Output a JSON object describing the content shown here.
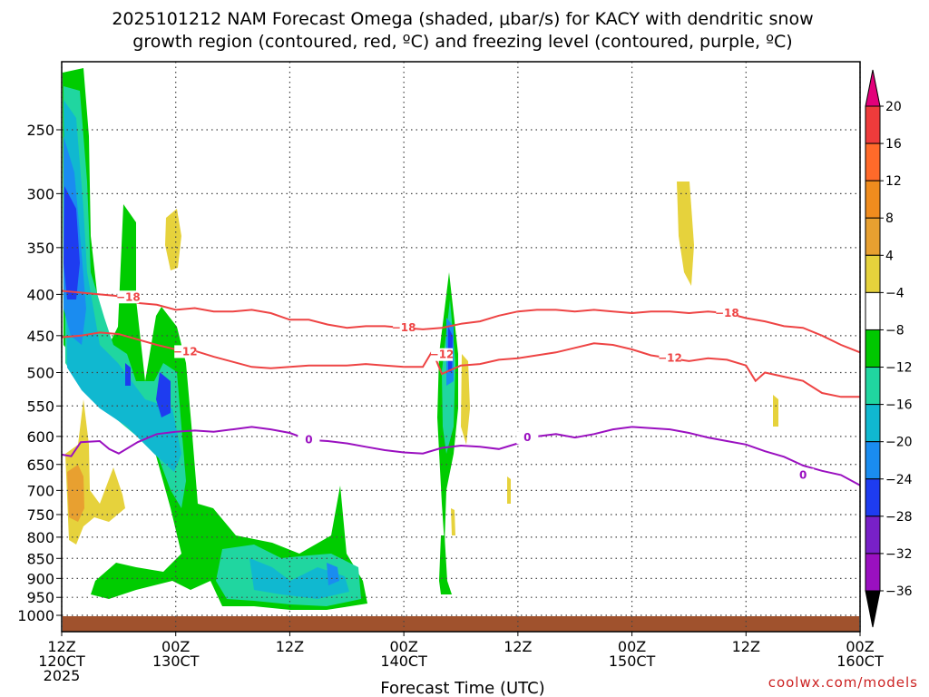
{
  "chart_data": {
    "type": "contour",
    "title_line1": "2025101212 NAM Forecast Omega (shaded, μbar/s) for KACY with dendritic snow",
    "title_line2": "growth region (contoured, red, ºC) and freezing level (contoured, purple, ºC)",
    "xlabel": "Forecast Time (UTC)",
    "credit": "coolwx.com/models",
    "x_ticks": [
      {
        "hour": 0,
        "line1": "12Z",
        "line2": "120CT",
        "line3": "2025"
      },
      {
        "hour": 12,
        "line1": "00Z",
        "line2": "130CT",
        "line3": ""
      },
      {
        "hour": 24,
        "line1": "12Z",
        "line2": "",
        "line3": ""
      },
      {
        "hour": 36,
        "line1": "00Z",
        "line2": "140CT",
        "line3": ""
      },
      {
        "hour": 48,
        "line1": "12Z",
        "line2": "",
        "line3": ""
      },
      {
        "hour": 60,
        "line1": "00Z",
        "line2": "150CT",
        "line3": ""
      },
      {
        "hour": 72,
        "line1": "12Z",
        "line2": "",
        "line3": ""
      },
      {
        "hour": 84,
        "line1": "00Z",
        "line2": "160CT",
        "line3": ""
      }
    ],
    "xlim": [
      0,
      84
    ],
    "y_ticks": [
      250,
      300,
      350,
      400,
      450,
      500,
      550,
      600,
      650,
      700,
      750,
      800,
      850,
      900,
      950,
      1000
    ],
    "ylim": [
      1020,
      200
    ],
    "yscale": "log-pressure",
    "grid": true,
    "colorbar_labels": [
      "20",
      "16",
      "12",
      "8",
      "4",
      "−4",
      "−8",
      "−12",
      "−16",
      "−20",
      "−24",
      "−28",
      "−32",
      "−36"
    ],
    "colorbar_colors": [
      "#e2007a",
      "#ee3b3b",
      "#ff6a2a",
      "#f08c1e",
      "#e8a030",
      "#e6d23c",
      "#ffffff",
      "#00c800",
      "#20d6a0",
      "#10b8d0",
      "#1a8cf0",
      "#1e3cf0",
      "#7820c8",
      "#9a10c0",
      "#a0a0a0",
      "#000000"
    ],
    "contours": [
      {
        "type": "dendritic",
        "label": "−18",
        "color": "#ee4444",
        "points": [
          [
            0,
            396
          ],
          [
            2,
            398
          ],
          [
            4,
            400
          ],
          [
            6,
            402
          ],
          [
            8,
            410
          ],
          [
            10,
            412
          ],
          [
            12,
            418
          ],
          [
            14,
            416
          ],
          [
            16,
            420
          ],
          [
            18,
            420
          ],
          [
            20,
            418
          ],
          [
            22,
            422
          ],
          [
            24,
            430
          ],
          [
            26,
            430
          ],
          [
            28,
            436
          ],
          [
            30,
            440
          ],
          [
            32,
            438
          ],
          [
            34,
            438
          ],
          [
            36,
            440
          ],
          [
            38,
            442
          ],
          [
            40,
            440
          ],
          [
            42,
            435
          ],
          [
            44,
            432
          ],
          [
            46,
            425
          ],
          [
            48,
            420
          ],
          [
            50,
            418
          ],
          [
            52,
            418
          ],
          [
            54,
            420
          ],
          [
            56,
            418
          ],
          [
            58,
            420
          ],
          [
            60,
            422
          ],
          [
            62,
            420
          ],
          [
            64,
            420
          ],
          [
            66,
            422
          ],
          [
            68,
            420
          ],
          [
            70,
            422
          ],
          [
            72,
            428
          ],
          [
            74,
            432
          ],
          [
            76,
            438
          ],
          [
            78,
            440
          ],
          [
            80,
            450
          ],
          [
            82,
            462
          ],
          [
            84,
            472
          ]
        ],
        "label_at": [
          [
            7,
            403
          ],
          [
            36,
            440
          ],
          [
            70,
            422
          ]
        ]
      },
      {
        "type": "dendritic",
        "label": "−12",
        "color": "#ee4444",
        "points": [
          [
            0,
            452
          ],
          [
            2,
            450
          ],
          [
            4,
            446
          ],
          [
            6,
            448
          ],
          [
            8,
            455
          ],
          [
            10,
            462
          ],
          [
            12,
            468
          ],
          [
            14,
            470
          ],
          [
            16,
            478
          ],
          [
            18,
            485
          ],
          [
            20,
            492
          ],
          [
            22,
            494
          ],
          [
            24,
            492
          ],
          [
            26,
            490
          ],
          [
            28,
            490
          ],
          [
            30,
            490
          ],
          [
            32,
            488
          ],
          [
            34,
            490
          ],
          [
            36,
            492
          ],
          [
            38,
            492
          ],
          [
            39,
            470
          ],
          [
            40,
            502
          ],
          [
            42,
            490
          ],
          [
            44,
            488
          ],
          [
            46,
            482
          ],
          [
            48,
            480
          ],
          [
            50,
            476
          ],
          [
            52,
            472
          ],
          [
            54,
            466
          ],
          [
            56,
            460
          ],
          [
            58,
            462
          ],
          [
            60,
            468
          ],
          [
            62,
            476
          ],
          [
            64,
            480
          ],
          [
            66,
            484
          ],
          [
            68,
            480
          ],
          [
            70,
            482
          ],
          [
            72,
            490
          ],
          [
            73,
            512
          ],
          [
            74,
            500
          ],
          [
            76,
            506
          ],
          [
            78,
            512
          ],
          [
            80,
            530
          ],
          [
            82,
            536
          ],
          [
            84,
            536
          ]
        ],
        "label_at": [
          [
            13,
            471
          ],
          [
            40,
            475
          ],
          [
            64,
            480
          ]
        ]
      },
      {
        "type": "freezing",
        "label": "0",
        "color": "#9a10c0",
        "points": [
          [
            0,
            632
          ],
          [
            1,
            635
          ],
          [
            2,
            610
          ],
          [
            4,
            608
          ],
          [
            5,
            622
          ],
          [
            6,
            630
          ],
          [
            8,
            610
          ],
          [
            10,
            596
          ],
          [
            12,
            592
          ],
          [
            14,
            590
          ],
          [
            16,
            592
          ],
          [
            18,
            588
          ],
          [
            20,
            584
          ],
          [
            22,
            588
          ],
          [
            24,
            594
          ],
          [
            26,
            606
          ],
          [
            28,
            608
          ],
          [
            30,
            612
          ],
          [
            32,
            618
          ],
          [
            34,
            624
          ],
          [
            36,
            628
          ],
          [
            38,
            630
          ],
          [
            40,
            620
          ],
          [
            42,
            616
          ],
          [
            44,
            618
          ],
          [
            46,
            622
          ],
          [
            48,
            612
          ],
          [
            50,
            600
          ],
          [
            52,
            596
          ],
          [
            54,
            602
          ],
          [
            56,
            596
          ],
          [
            58,
            588
          ],
          [
            60,
            584
          ],
          [
            62,
            586
          ],
          [
            64,
            588
          ],
          [
            66,
            594
          ],
          [
            68,
            602
          ],
          [
            70,
            608
          ],
          [
            72,
            614
          ],
          [
            74,
            626
          ],
          [
            76,
            636
          ],
          [
            78,
            652
          ],
          [
            80,
            662
          ],
          [
            82,
            670
          ],
          [
            84,
            690
          ]
        ],
        "label_at": [
          [
            26,
            606
          ],
          [
            49,
            602
          ],
          [
            78,
            670
          ]
        ]
      }
    ]
  }
}
